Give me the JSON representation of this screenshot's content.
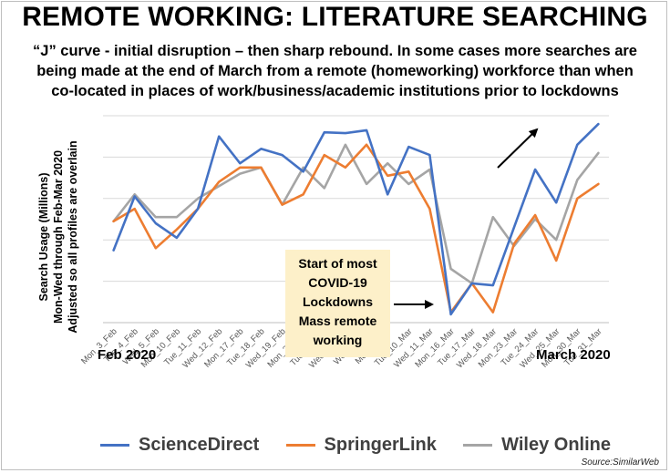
{
  "title": "REMOTE WORKING: LITERATURE SEARCHING",
  "subtitle_lines": [
    "“J” curve - initial disruption – then sharp rebound. In some cases more searches are",
    "being made at the end of March from a remote (homeworking) workforce than when",
    "co-located in places of work/business/academic institutions prior to lockdowns"
  ],
  "ylabel_lines": [
    "Search Usage (Millions)",
    "Mon-Wed through Feb-Mar 2020",
    "Adjusted so all profiles are overlain"
  ],
  "corner_left": "Feb 2020",
  "corner_right": "March 2020",
  "annotation_lines": [
    "Start of most",
    "COVID-19",
    "Lockdowns",
    "Mass remote",
    "working"
  ],
  "source": "Source:SimilarWeb",
  "colors": {
    "ScienceDirect": "#4472c4",
    "SpringerLink": "#ed7d31",
    "Wiley Online": "#a5a5a5",
    "grid": "#d9d9d9",
    "annotation_bg": "#fdf0c9"
  },
  "chart_data": {
    "type": "line",
    "title": "REMOTE WORKING: LITERATURE SEARCHING",
    "ylabel": "Search Usage (Millions) Mon-Wed through Feb-Mar 2020 Adjusted so all profiles are overlain",
    "xlabel": "",
    "ylim": [
      0,
      5
    ],
    "y_tick_labels_shown": false,
    "grid": "horizontal",
    "legend": "bottom",
    "categories": [
      "Mon_3_Feb",
      "Tue_4_Feb",
      "Wed_5_Feb",
      "Mon_10_Feb",
      "Tue_11_Feb",
      "Wed_12_Feb",
      "Mon_17_Feb",
      "Tue_18_Feb",
      "Wed_19_Feb",
      "Mon_24_Feb",
      "Tue_25_Feb",
      "Wed_26_Feb",
      "Wed_4_Mar",
      "Mon_9_Mar",
      "Tue_10_Mar",
      "Wed_11_Mar",
      "Mon_16_Mar",
      "Tue_17_Mar",
      "Wed_18_Mar",
      "Mon_23_Mar",
      "Tue_24_Mar",
      "Wed_25_Mar",
      "Mon_30_Mar",
      "Tue_31_Mar"
    ],
    "series": [
      {
        "name": "ScienceDirect",
        "values": [
          1.75,
          3.05,
          2.4,
          2.05,
          2.75,
          4.5,
          3.85,
          4.2,
          4.05,
          3.65,
          4.6,
          4.58,
          4.65,
          3.1,
          4.25,
          4.05,
          0.2,
          0.95,
          0.9,
          2.3,
          3.7,
          2.9,
          4.3,
          4.8
        ]
      },
      {
        "name": "SpringerLink",
        "values": [
          2.45,
          2.75,
          1.8,
          2.25,
          2.75,
          3.4,
          3.75,
          3.75,
          2.85,
          3.1,
          4.05,
          3.75,
          4.3,
          3.55,
          3.65,
          2.75,
          0.25,
          0.95,
          0.25,
          1.9,
          2.6,
          1.5,
          3.0,
          3.35
        ]
      },
      {
        "name": "Wiley Online",
        "values": [
          2.45,
          3.1,
          2.55,
          2.55,
          3.0,
          3.3,
          3.6,
          3.75,
          2.85,
          3.75,
          3.25,
          4.3,
          3.35,
          3.85,
          3.35,
          3.7,
          1.3,
          0.95,
          2.55,
          1.85,
          2.5,
          2.0,
          3.45,
          4.1
        ]
      }
    ]
  }
}
